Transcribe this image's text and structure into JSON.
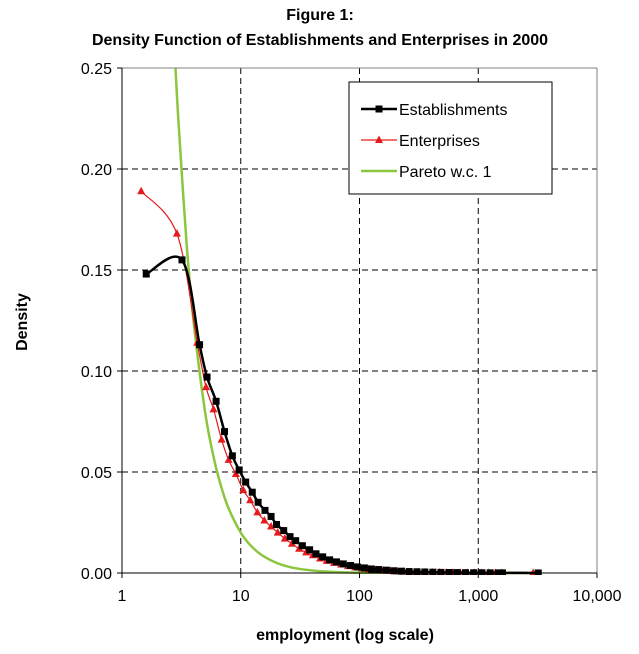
{
  "chart_data": {
    "type": "line",
    "title": "Figure 1:",
    "subtitle": "Density Function of Establishments and Enterprises in 2000",
    "xlabel": "employment (log scale)",
    "ylabel": "Density",
    "xscale": "log",
    "xlim": [
      1,
      10000
    ],
    "ylim": [
      0,
      0.25
    ],
    "xticks": [
      1,
      10,
      100,
      1000,
      10000
    ],
    "xtick_labels": [
      "1",
      "10",
      "100",
      "1,000",
      "10,000"
    ],
    "yticks": [
      0,
      0.05,
      0.1,
      0.15,
      0.2,
      0.25
    ],
    "ytick_labels": [
      "0.00",
      "0.05",
      "0.10",
      "0.15",
      "0.20",
      "0.25"
    ],
    "grid": true,
    "legend_position": "top-right",
    "colors": {
      "establishments": "#000000",
      "enterprises": "#e41a1c",
      "pareto": "#8cc63f",
      "grid": "#000000",
      "frame": "#808080"
    },
    "series": [
      {
        "name": "Establishments",
        "marker": "square",
        "x": [
          1.6,
          3.2,
          4.5,
          5.2,
          6.2,
          7.3,
          8.5,
          9.7,
          11,
          12.5,
          14,
          16,
          18,
          20,
          23,
          26,
          29,
          33,
          38,
          43,
          49,
          56,
          64,
          73,
          84,
          96,
          110,
          126,
          145,
          168,
          195,
          225,
          262,
          305,
          355,
          415,
          485,
          570,
          665,
          780,
          915,
          1075,
          1260,
          1480,
          1600,
          3200
        ],
        "y": [
          0.148,
          0.155,
          0.113,
          0.097,
          0.085,
          0.07,
          0.058,
          0.051,
          0.045,
          0.04,
          0.035,
          0.031,
          0.028,
          0.024,
          0.021,
          0.018,
          0.016,
          0.0135,
          0.0115,
          0.0095,
          0.008,
          0.0065,
          0.0055,
          0.0045,
          0.0037,
          0.003,
          0.0025,
          0.002,
          0.0017,
          0.0014,
          0.0011,
          0.0009,
          0.0007,
          0.0006,
          0.0005,
          0.0004,
          0.0003,
          0.00025,
          0.0002,
          0.00015,
          0.00012,
          0.0001,
          8e-05,
          6e-05,
          5e-05,
          2e-05
        ]
      },
      {
        "name": "Enterprises",
        "marker": "triangle",
        "x": [
          1.45,
          2.9,
          4.3,
          5.1,
          5.9,
          6.9,
          7.9,
          9.1,
          10.5,
          12,
          13.8,
          15.8,
          18,
          20.5,
          23.5,
          27,
          31,
          35.5,
          40.5,
          46.5,
          53,
          61,
          70,
          80,
          92,
          105,
          120,
          138,
          158,
          181,
          207,
          237,
          272,
          312,
          357,
          409,
          469,
          537,
          615,
          705,
          808,
          925,
          1060,
          1215,
          1390,
          1595,
          2900
        ],
        "y": [
          0.189,
          0.168,
          0.114,
          0.092,
          0.081,
          0.066,
          0.056,
          0.049,
          0.041,
          0.036,
          0.03,
          0.026,
          0.023,
          0.02,
          0.017,
          0.0145,
          0.012,
          0.0102,
          0.0088,
          0.0072,
          0.006,
          0.005,
          0.0042,
          0.0034,
          0.0028,
          0.0023,
          0.0019,
          0.0015,
          0.0012,
          0.001,
          0.0008,
          0.00065,
          0.00052,
          0.00042,
          0.00034,
          0.00027,
          0.00022,
          0.00017,
          0.00014,
          0.00011,
          9e-05,
          7e-05,
          5e-05,
          4e-05,
          3e-05,
          2e-05,
          1e-05
        ]
      },
      {
        "name": "Pareto w.c. 1",
        "marker": "none",
        "x": [
          2.82,
          3,
          3.5,
          4,
          5,
          6,
          7,
          8,
          10,
          12,
          15,
          20,
          25,
          30,
          40,
          50,
          70,
          100,
          200,
          500,
          1000,
          2000,
          3000
        ],
        "y": [
          0.25,
          0.222,
          0.163,
          0.125,
          0.08,
          0.0556,
          0.0408,
          0.03125,
          0.02,
          0.0139,
          0.0089,
          0.005,
          0.0032,
          0.0022,
          0.00125,
          0.0008,
          0.0004,
          0.0002,
          5e-05,
          8e-06,
          2e-06,
          5e-07,
          2e-07
        ]
      }
    ]
  }
}
